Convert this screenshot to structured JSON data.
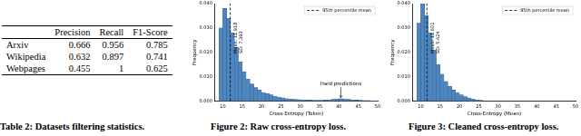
{
  "table": {
    "caption": "Table 2: Datasets filtering statistics.",
    "header": [
      "",
      "Precision",
      "Recall",
      "F1-Score"
    ],
    "rows": [
      [
        "Arxiv",
        "0.666",
        "0.956",
        "0.785"
      ],
      [
        "Wikipedia",
        "0.632",
        "0.897",
        "0.741"
      ],
      [
        "Webpages",
        "0.455",
        "1",
        "0.625"
      ]
    ]
  },
  "chart_data": [
    {
      "type": "histogram",
      "caption": "Figure 2: Raw cross-entropy loss.",
      "x_label": "Cross Entropy (Token)",
      "y_label": "Frequency",
      "bins": [
        9,
        10,
        11,
        12,
        13,
        14,
        15,
        16,
        17,
        18,
        19,
        20,
        21,
        22,
        23,
        24,
        25,
        26,
        27,
        28,
        29,
        30,
        31,
        32,
        33,
        34,
        35,
        36,
        37,
        38,
        39,
        40,
        41,
        42,
        43,
        44,
        45,
        46,
        47,
        48,
        49,
        50
      ],
      "values": [
        0.03,
        0.038,
        0.034,
        0.028,
        0.022,
        0.016,
        0.012,
        0.009,
        0.007,
        0.0055,
        0.0045,
        0.0035,
        0.003,
        0.0025,
        0.002,
        0.0016,
        0.0013,
        0.001,
        0.0008,
        0.0007,
        0.0006,
        0.0005,
        0.0004,
        0.0004,
        0.0003,
        0.0003,
        0.0003,
        0.0004,
        0.0005,
        0.0007,
        0.0009,
        0.001,
        0.0009,
        0.0007,
        0.0005,
        0.0004,
        0.0003,
        0.0002,
        0.0002,
        0.0001,
        0.0001
      ],
      "color": "#4f86bf",
      "xlim": [
        8,
        50
      ],
      "xticks": [
        10,
        15,
        20,
        25,
        30,
        35,
        40,
        45,
        50
      ],
      "ylim": [
        0,
        0.04
      ],
      "yticks": [
        {
          "value": 0,
          "label": "0.000"
        },
        {
          "value": 0.01,
          "label": "0.010"
        },
        {
          "value": 0.02,
          "label": "0.020"
        },
        {
          "value": 0.03,
          "label": "0.030"
        },
        {
          "value": 0.04,
          "label": "0.040"
        }
      ],
      "grid": false,
      "legend": "upper right",
      "mean_line": {
        "value": 11.918,
        "name": "95th percentile mean",
        "line_style": "dashed",
        "mean_label": "Mean: 11.918",
        "sd_label": "SD: 7.393"
      },
      "annotations": [
        {
          "text": "Hard predictions",
          "x": 40.5,
          "y": 0.006
        }
      ]
    },
    {
      "type": "histogram",
      "caption": "Figure 3: Cleaned cross-entropy loss.",
      "x_label": "Cross-Entropy (Mean)",
      "y_label": "Frequency",
      "bins": [
        9,
        10,
        11,
        12,
        13,
        14,
        15,
        16,
        17,
        18,
        19,
        20,
        21,
        22,
        23,
        24,
        25,
        26,
        27,
        28,
        29,
        30,
        31,
        32,
        33,
        34,
        35,
        36,
        37,
        38,
        39,
        40,
        41,
        42,
        43,
        44,
        45,
        46,
        47,
        48,
        49,
        50
      ],
      "values": [
        0.032,
        0.04,
        0.035,
        0.028,
        0.021,
        0.015,
        0.011,
        0.008,
        0.006,
        0.0045,
        0.0035,
        0.0025,
        0.0018,
        0.0012,
        0.0008,
        0.0005,
        0.0003,
        0,
        0,
        0,
        0,
        0,
        0,
        0,
        0,
        0,
        0,
        0,
        0,
        0,
        0,
        0,
        0,
        0,
        0,
        0,
        0,
        0,
        0,
        0,
        0
      ],
      "color": "#4f86bf",
      "xlim": [
        8,
        50
      ],
      "xticks": [
        10,
        15,
        20,
        25,
        30,
        35,
        40,
        45,
        50
      ],
      "ylim": [
        0,
        0.04
      ],
      "yticks": [
        {
          "value": 0,
          "label": "0.000"
        },
        {
          "value": 0.01,
          "label": "0.010"
        },
        {
          "value": 0.02,
          "label": "0.020"
        },
        {
          "value": 0.03,
          "label": "0.030"
        },
        {
          "value": 0.04,
          "label": "0.040"
        }
      ],
      "grid": false,
      "legend": "upper right",
      "mean_line": {
        "value": 11.601,
        "name": "95th percentile mean",
        "line_style": "dashed",
        "mean_label": "Mean: 11.601",
        "sd_label": "SD: 5.424"
      },
      "annotations": []
    }
  ]
}
